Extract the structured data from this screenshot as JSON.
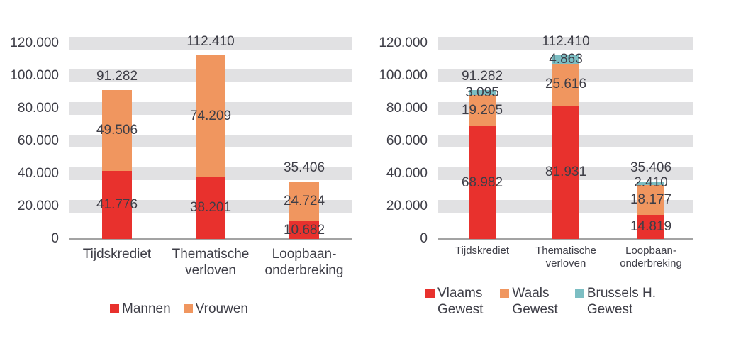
{
  "page": {
    "background": "#FFFFFF",
    "text_color": "#3E3E47",
    "gridband_color": "#E1E1E3",
    "axis_color": "#A3A3A3"
  },
  "chart_data": [
    {
      "type": "bar",
      "stacked": true,
      "title": "",
      "xlabel": "",
      "ylabel": "",
      "ylim": [
        0,
        120000
      ],
      "grid": "horizontal-bands",
      "legend_position": "bottom",
      "categories": [
        [
          "Tijdskrediet"
        ],
        [
          "Thematische",
          "verloven"
        ],
        [
          "Loopbaan-",
          "onderbreking"
        ]
      ],
      "series": [
        {
          "name": "Mannen",
          "name_lines": [
            "Mannen"
          ],
          "color": "#E8312D",
          "values": [
            41776,
            38201,
            10682
          ],
          "labels": [
            "41.776",
            "38.201",
            "10.682"
          ]
        },
        {
          "name": "Vrouwen",
          "name_lines": [
            "Vrouwen"
          ],
          "color": "#F0965F",
          "values": [
            49506,
            74209,
            24724
          ],
          "labels": [
            "49.506",
            "74.209",
            "24.724"
          ]
        }
      ],
      "totals": [
        91282,
        112410,
        35406
      ],
      "total_labels": [
        "91.282",
        "112.410",
        "35.406"
      ],
      "y_ticks": [
        {
          "value": 0,
          "label": "0"
        },
        {
          "value": 20000,
          "label": "20.000"
        },
        {
          "value": 40000,
          "label": "40.000"
        },
        {
          "value": 60000,
          "label": "60.000"
        },
        {
          "value": 80000,
          "label": "80.000"
        },
        {
          "value": 100000,
          "label": "100.000"
        },
        {
          "value": 120000,
          "label": "120.000"
        }
      ]
    },
    {
      "type": "bar",
      "stacked": true,
      "title": "",
      "xlabel": "",
      "ylabel": "",
      "ylim": [
        0,
        120000
      ],
      "grid": "horizontal-bands",
      "legend_position": "bottom",
      "categories": [
        [
          "Tijdskrediet"
        ],
        [
          "Thematische",
          "verloven"
        ],
        [
          "Loopbaan-",
          "onderbreking"
        ]
      ],
      "series": [
        {
          "name": "Vlaams Gewest",
          "name_lines": [
            "Vlaams",
            "Gewest"
          ],
          "color": "#E8312D",
          "values": [
            68982,
            81931,
            14819
          ],
          "labels": [
            "68.982",
            "81.931",
            "14.819"
          ]
        },
        {
          "name": "Waals Gewest",
          "name_lines": [
            "Waals",
            "Gewest"
          ],
          "color": "#F0965F",
          "values": [
            19205,
            25616,
            18177
          ],
          "labels": [
            "19.205",
            "25.616",
            "18.177"
          ]
        },
        {
          "name": "Brussels H. Gewest",
          "name_lines": [
            "Brussels H.",
            "Gewest"
          ],
          "color": "#7CBEC3",
          "values": [
            3095,
            4863,
            2410
          ],
          "labels": [
            "3.095",
            "4.863",
            "2.410"
          ]
        }
      ],
      "totals": [
        91282,
        112410,
        35406
      ],
      "total_labels": [
        "91.282",
        "112.410",
        "35.406"
      ],
      "y_ticks": [
        {
          "value": 0,
          "label": "0"
        },
        {
          "value": 20000,
          "label": "20.000"
        },
        {
          "value": 40000,
          "label": "40.000"
        },
        {
          "value": 60000,
          "label": "60.000"
        },
        {
          "value": 80000,
          "label": "80.000"
        },
        {
          "value": 100000,
          "label": "100.000"
        },
        {
          "value": 120000,
          "label": "120.000"
        }
      ]
    }
  ]
}
